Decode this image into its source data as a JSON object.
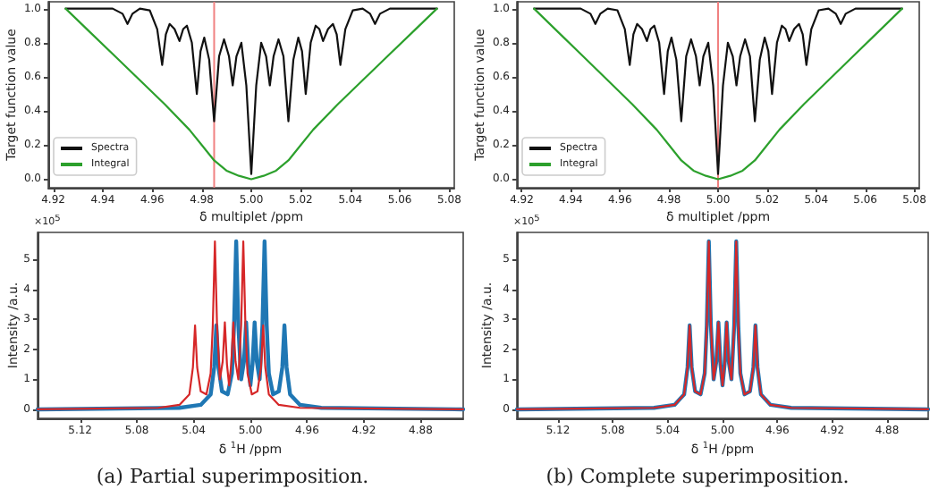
{
  "chart_data": [
    {
      "type": "line",
      "xlabel": "δ multiplet /ppm",
      "ylabel": "Target function value",
      "legend": "bottom left",
      "xlim": [
        4.918,
        5.082
      ],
      "ylim": [
        -0.05,
        1.04
      ],
      "xticks": [
        {
          "value": 4.92,
          "label": "4.92"
        },
        {
          "value": 4.94,
          "label": "4.94"
        },
        {
          "value": 4.96,
          "label": "4.96"
        },
        {
          "value": 4.98,
          "label": "4.98"
        },
        {
          "value": 5,
          "label": "5.00"
        },
        {
          "value": 5.02,
          "label": "5.02"
        },
        {
          "value": 5.04,
          "label": "5.04"
        },
        {
          "value": 5.06,
          "label": "5.06"
        },
        {
          "value": 5.08,
          "label": "5.08"
        }
      ],
      "yticks": [
        {
          "value": 0,
          "label": "0.0"
        },
        {
          "value": 0.2,
          "label": "0.2"
        },
        {
          "value": 0.4,
          "label": "0.4"
        },
        {
          "value": 0.6,
          "label": "0.6"
        },
        {
          "value": 0.8,
          "label": "0.8"
        },
        {
          "value": 1,
          "label": "1.0"
        }
      ],
      "ref_lines": [
        {
          "axis": "x",
          "value": 4.985,
          "color": "#f08080"
        }
      ],
      "series": [
        {
          "name": "Spectra",
          "color": "#111111",
          "x": [
            4.925,
            4.944,
            4.948,
            4.95,
            4.952,
            4.955,
            4.959,
            4.962,
            4.964,
            4.9655,
            4.967,
            4.969,
            4.971,
            4.9725,
            4.974,
            4.976,
            4.978,
            4.9795,
            4.981,
            4.983,
            4.985,
            4.987,
            4.989,
            4.991,
            4.9925,
            4.994,
            4.996,
            4.998,
            5.0,
            5.002,
            5.004,
            5.006,
            5.0075,
            5.009,
            5.011,
            5.013,
            5.015,
            5.017,
            5.019,
            5.0205,
            5.022,
            5.024,
            5.026,
            5.0275,
            5.029,
            5.031,
            5.033,
            5.0345,
            5.036,
            5.038,
            5.041,
            5.045,
            5.048,
            5.05,
            5.052,
            5.056,
            5.075
          ],
          "values": [
            1,
            1,
            0.97,
            0.91,
            0.97,
            1,
            0.99,
            0.88,
            0.67,
            0.85,
            0.91,
            0.88,
            0.81,
            0.88,
            0.9,
            0.8,
            0.5,
            0.75,
            0.83,
            0.7,
            0.34,
            0.72,
            0.82,
            0.72,
            0.55,
            0.72,
            0.8,
            0.55,
            0.03,
            0.55,
            0.8,
            0.72,
            0.55,
            0.72,
            0.82,
            0.72,
            0.34,
            0.7,
            0.83,
            0.75,
            0.5,
            0.8,
            0.9,
            0.88,
            0.81,
            0.88,
            0.91,
            0.85,
            0.67,
            0.88,
            0.99,
            1,
            0.97,
            0.91,
            0.97,
            1,
            1
          ]
        },
        {
          "name": "Integral",
          "color": "#2ca02c",
          "x": [
            4.925,
            4.935,
            4.945,
            4.955,
            4.965,
            4.975,
            4.98,
            4.985,
            4.99,
            4.995,
            5.0,
            5.005,
            5.01,
            5.015,
            5.02,
            5.025,
            5.035,
            5.045,
            5.055,
            5.065,
            5.075
          ],
          "values": [
            1,
            0.86,
            0.72,
            0.58,
            0.44,
            0.29,
            0.2,
            0.11,
            0.05,
            0.02,
            0,
            0.02,
            0.05,
            0.11,
            0.2,
            0.29,
            0.44,
            0.58,
            0.72,
            0.86,
            1
          ]
        }
      ]
    },
    {
      "type": "line",
      "xlabel": "δ multiplet /ppm",
      "ylabel": "Target function value",
      "legend": "bottom left",
      "xlim": [
        4.918,
        5.082
      ],
      "ylim": [
        -0.05,
        1.04
      ],
      "xticks": [
        {
          "value": 4.92,
          "label": "4.92"
        },
        {
          "value": 4.94,
          "label": "4.94"
        },
        {
          "value": 4.96,
          "label": "4.96"
        },
        {
          "value": 4.98,
          "label": "4.98"
        },
        {
          "value": 5,
          "label": "5.00"
        },
        {
          "value": 5.02,
          "label": "5.02"
        },
        {
          "value": 5.04,
          "label": "5.04"
        },
        {
          "value": 5.06,
          "label": "5.06"
        },
        {
          "value": 5.08,
          "label": "5.08"
        }
      ],
      "yticks": [
        {
          "value": 0,
          "label": "0.0"
        },
        {
          "value": 0.2,
          "label": "0.2"
        },
        {
          "value": 0.4,
          "label": "0.4"
        },
        {
          "value": 0.6,
          "label": "0.6"
        },
        {
          "value": 0.8,
          "label": "0.8"
        },
        {
          "value": 1,
          "label": "1.0"
        }
      ],
      "ref_lines": [
        {
          "axis": "x",
          "value": 5.0,
          "color": "#f08080"
        }
      ],
      "series": [
        {
          "name": "Spectra",
          "color": "#111111",
          "x": [
            4.925,
            4.944,
            4.948,
            4.95,
            4.952,
            4.955,
            4.959,
            4.962,
            4.964,
            4.9655,
            4.967,
            4.969,
            4.971,
            4.9725,
            4.974,
            4.976,
            4.978,
            4.9795,
            4.981,
            4.983,
            4.985,
            4.987,
            4.989,
            4.991,
            4.9925,
            4.994,
            4.996,
            4.998,
            5.0,
            5.002,
            5.004,
            5.006,
            5.0075,
            5.009,
            5.011,
            5.013,
            5.015,
            5.017,
            5.019,
            5.0205,
            5.022,
            5.024,
            5.026,
            5.0275,
            5.029,
            5.031,
            5.033,
            5.0345,
            5.036,
            5.038,
            5.041,
            5.045,
            5.048,
            5.05,
            5.052,
            5.056,
            5.075
          ],
          "values": [
            1,
            1,
            0.97,
            0.91,
            0.97,
            1,
            0.99,
            0.88,
            0.67,
            0.85,
            0.91,
            0.88,
            0.81,
            0.88,
            0.9,
            0.8,
            0.5,
            0.75,
            0.83,
            0.7,
            0.34,
            0.72,
            0.82,
            0.72,
            0.55,
            0.72,
            0.8,
            0.55,
            0.03,
            0.55,
            0.8,
            0.72,
            0.55,
            0.72,
            0.82,
            0.72,
            0.34,
            0.7,
            0.83,
            0.75,
            0.5,
            0.8,
            0.9,
            0.88,
            0.81,
            0.88,
            0.91,
            0.85,
            0.67,
            0.88,
            0.99,
            1,
            0.97,
            0.91,
            0.97,
            1,
            1
          ]
        },
        {
          "name": "Integral",
          "color": "#2ca02c",
          "x": [
            4.925,
            4.935,
            4.945,
            4.955,
            4.965,
            4.975,
            4.98,
            4.985,
            4.99,
            4.995,
            5.0,
            5.005,
            5.01,
            5.015,
            5.02,
            5.025,
            5.035,
            5.045,
            5.055,
            5.065,
            5.075
          ],
          "values": [
            1,
            0.86,
            0.72,
            0.58,
            0.44,
            0.29,
            0.2,
            0.11,
            0.05,
            0.02,
            0,
            0.02,
            0.05,
            0.11,
            0.2,
            0.29,
            0.44,
            0.58,
            0.72,
            0.86,
            1
          ]
        }
      ]
    },
    {
      "type": "line",
      "xlabel": "δ $^{1}$H /ppm",
      "ylabel": "Intensity /a.u.",
      "annotations": [
        "×10$^{5}$",
        "(a) Partial superimposition."
      ],
      "xlim": [
        5.15,
        4.85
      ],
      "ylim": [
        -0.3,
        5.9
      ],
      "xticks": [
        {
          "value": 5.12,
          "label": "5.12"
        },
        {
          "value": 5.08,
          "label": "5.08"
        },
        {
          "value": 5.04,
          "label": "5.04"
        },
        {
          "value": 5,
          "label": "5.00"
        },
        {
          "value": 4.96,
          "label": "4.96"
        },
        {
          "value": 4.92,
          "label": "4.92"
        },
        {
          "value": 4.88,
          "label": "4.88"
        }
      ],
      "yticks": [
        0,
        1,
        2,
        3,
        4,
        5
      ],
      "series": [
        {
          "color": "#1f77b4",
          "x": [
            4.85,
            4.95,
            4.965,
            4.972,
            4.9745,
            4.976,
            4.9775,
            4.98,
            4.984,
            4.987,
            4.9885,
            4.99,
            4.9915,
            4.9935,
            4.9955,
            4.997,
            4.9985,
            5.0,
            5.0015,
            5.003,
            5.0045,
            5.0065,
            5.0085,
            5.01,
            5.0115,
            5.013,
            5.016,
            5.02,
            5.0225,
            5.024,
            5.0255,
            5.028,
            5.035,
            5.05,
            5.15
          ],
          "values": [
            0,
            0.05,
            0.15,
            0.5,
            1.4,
            2.8,
            1.4,
            0.6,
            0.5,
            1.2,
            2.8,
            5.6,
            2.8,
            1.0,
            1.6,
            2.9,
            1.5,
            0.8,
            1.5,
            2.9,
            1.6,
            1.0,
            2.8,
            5.6,
            2.8,
            1.2,
            0.5,
            0.6,
            1.4,
            2.8,
            1.4,
            0.5,
            0.15,
            0.05,
            0
          ]
        },
        {
          "color": "#d62728",
          "x": [
            4.85,
            4.965,
            4.98,
            4.987,
            4.9895,
            4.991,
            4.9925,
            4.995,
            4.999,
            5.002,
            5.0035,
            5.005,
            5.0065,
            5.0085,
            5.0105,
            5.012,
            5.0135,
            5.015,
            5.0165,
            5.018,
            5.0195,
            5.0215,
            5.0235,
            5.025,
            5.0265,
            5.028,
            5.031,
            5.035,
            5.0375,
            5.039,
            5.0405,
            5.043,
            5.05,
            5.065,
            5.15
          ],
          "values": [
            0,
            0.05,
            0.15,
            0.5,
            1.4,
            2.8,
            1.4,
            0.6,
            0.5,
            1.2,
            2.8,
            5.6,
            2.8,
            1.0,
            1.6,
            2.9,
            1.5,
            0.8,
            1.5,
            2.9,
            1.6,
            1.0,
            2.8,
            5.6,
            2.8,
            1.2,
            0.5,
            0.6,
            1.4,
            2.8,
            1.4,
            0.5,
            0.15,
            0.05,
            0
          ]
        }
      ]
    },
    {
      "type": "line",
      "xlabel": "δ $^{1}$H /ppm",
      "ylabel": "Intensity /a.u.",
      "annotations": [
        "×10$^{5}$",
        "(b) Complete superimposition."
      ],
      "xlim": [
        5.15,
        4.85
      ],
      "ylim": [
        -0.3,
        5.9
      ],
      "xticks": [
        {
          "value": 5.12,
          "label": "5.12"
        },
        {
          "value": 5.08,
          "label": "5.08"
        },
        {
          "value": 5.04,
          "label": "5.04"
        },
        {
          "value": 5,
          "label": "5.00"
        },
        {
          "value": 4.96,
          "label": "4.96"
        },
        {
          "value": 4.92,
          "label": "4.92"
        },
        {
          "value": 4.88,
          "label": "4.88"
        }
      ],
      "yticks": [
        0,
        1,
        2,
        3,
        4,
        5
      ],
      "series": [
        {
          "color": "#1f77b4",
          "x": [
            4.85,
            4.95,
            4.965,
            4.972,
            4.9745,
            4.976,
            4.9775,
            4.98,
            4.984,
            4.987,
            4.9885,
            4.99,
            4.9915,
            4.9935,
            4.9955,
            4.997,
            4.9985,
            5.0,
            5.0015,
            5.003,
            5.0045,
            5.0065,
            5.0085,
            5.01,
            5.0115,
            5.013,
            5.016,
            5.02,
            5.0225,
            5.024,
            5.0255,
            5.028,
            5.035,
            5.05,
            5.15
          ],
          "values": [
            0,
            0.05,
            0.15,
            0.5,
            1.4,
            2.8,
            1.4,
            0.6,
            0.5,
            1.2,
            2.8,
            5.6,
            2.8,
            1.0,
            1.6,
            2.9,
            1.5,
            0.8,
            1.5,
            2.9,
            1.6,
            1.0,
            2.8,
            5.6,
            2.8,
            1.2,
            0.5,
            0.6,
            1.4,
            2.8,
            1.4,
            0.5,
            0.15,
            0.05,
            0
          ]
        },
        {
          "color": "#d62728",
          "x": [
            4.85,
            4.95,
            4.965,
            4.972,
            4.9745,
            4.976,
            4.9775,
            4.98,
            4.984,
            4.987,
            4.9885,
            4.99,
            4.9915,
            4.9935,
            4.9955,
            4.997,
            4.9985,
            5.0,
            5.0015,
            5.003,
            5.0045,
            5.0065,
            5.0085,
            5.01,
            5.0115,
            5.013,
            5.016,
            5.02,
            5.0225,
            5.024,
            5.0255,
            5.028,
            5.035,
            5.05,
            5.15
          ],
          "values": [
            0,
            0.05,
            0.15,
            0.5,
            1.4,
            2.8,
            1.4,
            0.6,
            0.5,
            1.2,
            2.8,
            5.6,
            2.8,
            1.0,
            1.6,
            2.9,
            1.5,
            0.8,
            1.5,
            2.9,
            1.6,
            1.0,
            2.8,
            5.6,
            2.8,
            1.2,
            0.5,
            0.6,
            1.4,
            2.8,
            1.4,
            0.5,
            0.15,
            0.05,
            0
          ]
        }
      ]
    }
  ]
}
